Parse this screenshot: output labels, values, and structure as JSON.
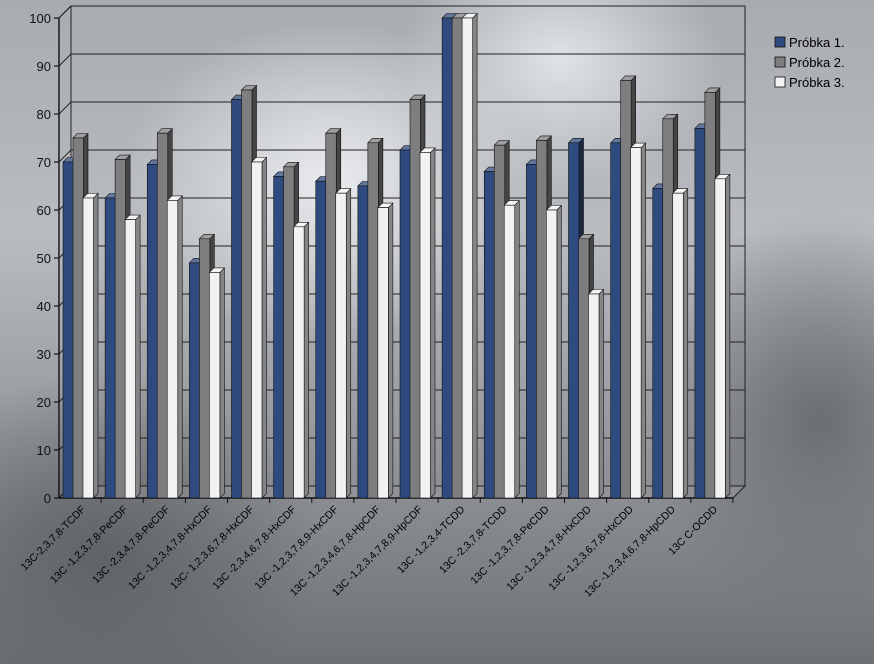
{
  "chart_data": {
    "type": "bar",
    "categories": [
      "13C-2,3,7,8-TCDF",
      "13C -1,2,3,7,8-PeCDF",
      "13C -2,3,4,7,8-PeCDF",
      "13C -1,2,3,4,7,8-HxCDF",
      "13C- 1,2,3,6,7,8-HxCDF",
      "13C -2,3,4,6,7,8-HxCDF",
      "13C -1,2,3,7,8,9-HxCDF",
      "13C -1,2,3,4,6,7,8-HpCDF",
      "13C -1,2,3,4,7,8,9-HpCDF",
      "13C -1,2,3,4-TCDD",
      "13C -2,3,7,8-TCDD",
      "13C -1,2,3,7,8-PeCDD",
      "13C -1,2,3,4,7,8-HxCDD",
      "13C -1,2,3,6,7,8-HxCDD",
      "13C -1,2,3,4,6,7,8-HpCDD",
      "13C C-OCDD"
    ],
    "series": [
      {
        "name": "Próbka 1.",
        "values": [
          70,
          62.5,
          69.5,
          49,
          83,
          67,
          66,
          65,
          72.5,
          100,
          68,
          69.5,
          74,
          74,
          64.5,
          77
        ]
      },
      {
        "name": "Próbka 2.",
        "values": [
          75,
          70.5,
          76,
          54,
          85,
          69,
          76,
          74,
          83,
          100,
          73.5,
          74.5,
          54,
          87,
          79,
          84.5
        ]
      },
      {
        "name": "Próbka 3.",
        "values": [
          62.5,
          58,
          62,
          47,
          70,
          56.5,
          63.5,
          60.5,
          72,
          100,
          61,
          60,
          42.5,
          73,
          63.5,
          66.5
        ]
      }
    ],
    "colors": [
      "#2e4a7e",
      "#7e7e80",
      "#f2f2f2"
    ],
    "title": "",
    "xlabel": "",
    "ylabel": "",
    "ylim": [
      0,
      100
    ],
    "yticks": [
      0,
      10,
      20,
      30,
      40,
      50,
      60,
      70,
      80,
      90,
      100
    ],
    "grid": true,
    "legend": "top-right"
  }
}
